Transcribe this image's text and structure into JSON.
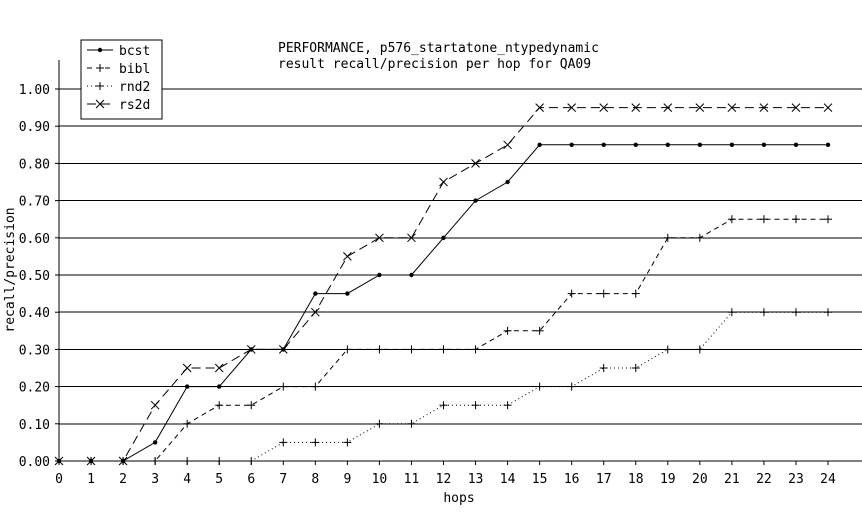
{
  "chart_data": {
    "type": "line",
    "title": "PERFORMANCE, p576_startatone_ntypedynamic",
    "subtitle": "result recall/precision per hop for QA09",
    "xlabel": "hops",
    "ylabel": "recall/precision",
    "x": [
      0,
      1,
      2,
      3,
      4,
      5,
      6,
      7,
      8,
      9,
      10,
      11,
      12,
      13,
      14,
      15,
      16,
      17,
      18,
      19,
      20,
      21,
      22,
      23,
      24
    ],
    "xlim": [
      0,
      24
    ],
    "ylim": [
      0,
      1
    ],
    "x_ticks": [
      "0",
      "1",
      "2",
      "3",
      "4",
      "5",
      "6",
      "7",
      "8",
      "9",
      "10",
      "11",
      "12",
      "13",
      "14",
      "15",
      "16",
      "17",
      "18",
      "19",
      "20",
      "21",
      "22",
      "23",
      "24"
    ],
    "y_ticks": [
      "0.00",
      "0.10",
      "0.20",
      "0.30",
      "0.40",
      "0.50",
      "0.60",
      "0.70",
      "0.80",
      "0.90",
      "1.00"
    ],
    "grid": "horizontal",
    "legend_position": "top-left",
    "series": [
      {
        "name": "bcst",
        "marker": "dot",
        "dash": "solid",
        "values": [
          0,
          0,
          0,
          0.05,
          0.2,
          0.2,
          0.3,
          0.3,
          0.45,
          0.45,
          0.5,
          0.5,
          0.6,
          0.7,
          0.75,
          0.85,
          0.85,
          0.85,
          0.85,
          0.85,
          0.85,
          0.85,
          0.85,
          0.85,
          0.85
        ]
      },
      {
        "name": "bibl",
        "marker": "plus",
        "dash": "dashed",
        "values": [
          0,
          0,
          0,
          0,
          0.1,
          0.15,
          0.15,
          0.2,
          0.2,
          0.3,
          0.3,
          0.3,
          0.3,
          0.3,
          0.35,
          0.35,
          0.45,
          0.45,
          0.45,
          0.6,
          0.6,
          0.65,
          0.65,
          0.65,
          0.65
        ]
      },
      {
        "name": "rnd2",
        "marker": "plus",
        "dash": "dotted",
        "values": [
          0,
          0,
          0,
          0,
          0,
          0,
          0,
          0.05,
          0.05,
          0.05,
          0.1,
          0.1,
          0.15,
          0.15,
          0.15,
          0.2,
          0.2,
          0.25,
          0.25,
          0.3,
          0.3,
          0.4,
          0.4,
          0.4,
          0.4
        ]
      },
      {
        "name": "rs2d",
        "marker": "cross",
        "dash": "longdash",
        "values": [
          0,
          0,
          0,
          0.15,
          0.25,
          0.25,
          0.3,
          0.3,
          0.4,
          0.55,
          0.6,
          0.6,
          0.75,
          0.8,
          0.85,
          0.95,
          0.95,
          0.95,
          0.95,
          0.95,
          0.95,
          0.95,
          0.95,
          0.95,
          0.95
        ]
      }
    ]
  }
}
